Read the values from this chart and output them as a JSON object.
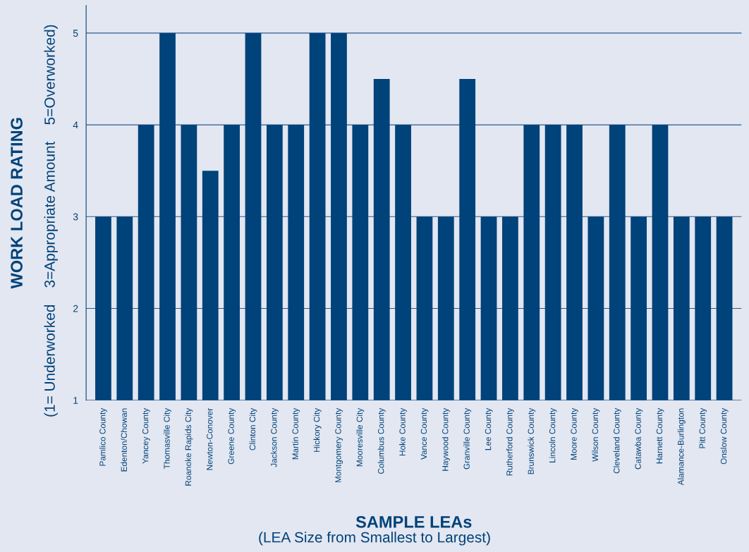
{
  "chart_data": {
    "type": "bar",
    "categories": [
      "Pamlico County",
      "Edenton/Chowan",
      "Yancey County",
      "Thomasville City",
      "Roanoke Rapids City",
      "Newton-Conover",
      "Greene County",
      "Clinton City",
      "Jackson County",
      "Martin County",
      "Hickory City",
      "Montgomery County",
      "Mooresville City",
      "Columbus County",
      "Hoke County",
      "Vance County",
      "Haywood County",
      "Granville County",
      "Lee County",
      "Rutherford County",
      "Brunswick County",
      "Lincoln County",
      "Moore County",
      "Wilson County",
      "Cleveland County",
      "Catawba County",
      "Harnett County",
      "Alamance-Burlington",
      "Pitt County",
      "Onslow County"
    ],
    "values": [
      3,
      3,
      4,
      5,
      4,
      3.5,
      4,
      5,
      4,
      4,
      5,
      5,
      4,
      4.5,
      4,
      3,
      3,
      4.5,
      3,
      3,
      4,
      4,
      4,
      3,
      4,
      3,
      4,
      3,
      3,
      3
    ],
    "color": "#00427a",
    "ylim": [
      1,
      5.3
    ],
    "yticks": [
      1,
      2,
      3,
      4,
      5
    ],
    "grid": "y",
    "xlabel": "SAMPLE LEAs",
    "ylabel": "WORK LOAD RATING",
    "annotations": [
      "(LEA Size from Smallest to Largest)",
      "(1= Underworked    3=Appropriate Amount    5=Overworked)"
    ]
  }
}
